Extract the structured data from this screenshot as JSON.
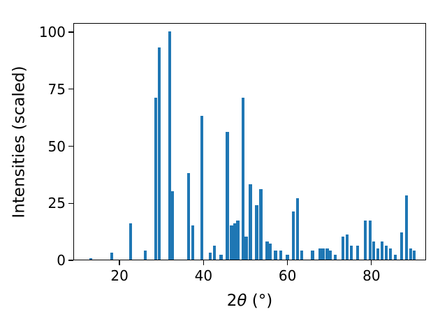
{
  "chart_data": {
    "type": "bar",
    "title": "",
    "xlabel": "2θ (°)",
    "xlabel_parts": {
      "number": "2",
      "symbol": "θ",
      "units": " (°)"
    },
    "ylabel": "Intensities (scaled)",
    "xlim": [
      9,
      93
    ],
    "ylim": [
      0,
      104
    ],
    "x_ticks": [
      20,
      40,
      60,
      80
    ],
    "y_ticks": [
      0,
      25,
      50,
      75,
      100
    ],
    "grid": false,
    "legend": null,
    "bar_color": "#1f77b4",
    "bar_width_deg": 0.7,
    "x": [
      13.0,
      18.0,
      22.5,
      26.0,
      28.5,
      29.3,
      31.8,
      32.5,
      36.3,
      37.3,
      39.5,
      41.5,
      42.5,
      44.0,
      45.5,
      46.5,
      47.3,
      48.0,
      49.2,
      50.0,
      51.0,
      52.5,
      53.5,
      55.0,
      55.8,
      57.0,
      58.3,
      59.8,
      61.2,
      62.2,
      63.2,
      65.8,
      67.5,
      68.3,
      69.3,
      70.0,
      71.2,
      73.0,
      74.0,
      75.0,
      76.5,
      78.3,
      79.5,
      80.3,
      81.3,
      82.3,
      83.3,
      84.3,
      85.5,
      87.0,
      88.2,
      89.2,
      90.0
    ],
    "values": [
      0.5,
      3,
      16,
      4,
      71,
      93,
      100,
      30,
      38,
      15,
      63,
      3,
      6,
      2,
      56,
      15,
      16,
      17,
      71,
      10,
      33,
      24,
      31,
      8,
      7,
      4,
      4,
      2,
      21,
      27,
      4,
      4,
      5,
      5,
      5,
      4,
      2,
      10,
      11,
      6,
      6,
      17,
      17,
      8,
      5,
      8,
      6,
      5,
      2,
      12,
      28,
      5,
      4
    ]
  }
}
